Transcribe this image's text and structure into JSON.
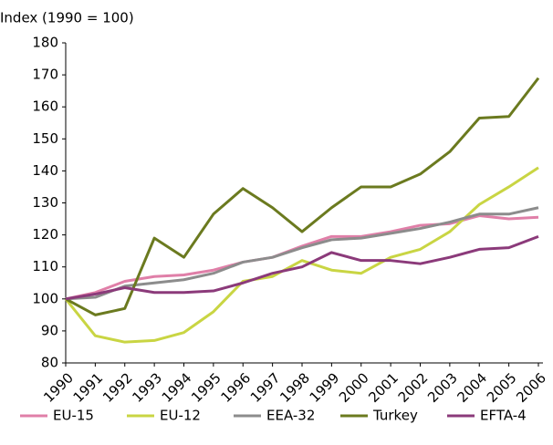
{
  "chart_data": {
    "type": "line",
    "y_label": "Index (1990 = 100)",
    "categories": [
      "1990",
      "1991",
      "1992",
      "1993",
      "1994",
      "1995",
      "1996",
      "1997",
      "1998",
      "1999",
      "2000",
      "2001",
      "2002",
      "2003",
      "2004",
      "2005",
      "2006"
    ],
    "ylim": [
      80,
      180
    ],
    "yticks": [
      80,
      90,
      100,
      110,
      120,
      130,
      140,
      150,
      160,
      170,
      180
    ],
    "grid": false,
    "legend": "bottom",
    "series": [
      {
        "name": "EU-15",
        "color": "#e07fa8",
        "values": [
          100,
          102,
          105.5,
          107,
          107.5,
          109,
          111.5,
          113,
          116.5,
          119.5,
          119.5,
          121,
          123,
          123.5,
          126,
          125,
          125.5
        ]
      },
      {
        "name": "EU-12",
        "color": "#c9d543",
        "values": [
          100,
          88.5,
          86.5,
          87,
          89.5,
          96,
          105.5,
          107,
          112,
          109,
          108,
          113,
          115.5,
          121,
          129.5,
          135,
          141
        ]
      },
      {
        "name": "EEA-32",
        "color": "#8c8c8c",
        "values": [
          100,
          100.5,
          104,
          105,
          106,
          108,
          111.5,
          113,
          116,
          118.5,
          119,
          120.5,
          122,
          124,
          126.5,
          126.5,
          128.5
        ]
      },
      {
        "name": "Turkey",
        "color": "#6b7a1f",
        "values": [
          100,
          95,
          97,
          119,
          113,
          126.5,
          134.5,
          128.5,
          121,
          128.5,
          135,
          135,
          139,
          146,
          156.5,
          157,
          169
        ]
      },
      {
        "name": "EFTA-4",
        "color": "#8b3a7a",
        "values": [
          100,
          101.5,
          103.5,
          102,
          102,
          102.5,
          105,
          108,
          110,
          114.5,
          112,
          112,
          111,
          113,
          115.5,
          116,
          119.5
        ]
      }
    ]
  }
}
